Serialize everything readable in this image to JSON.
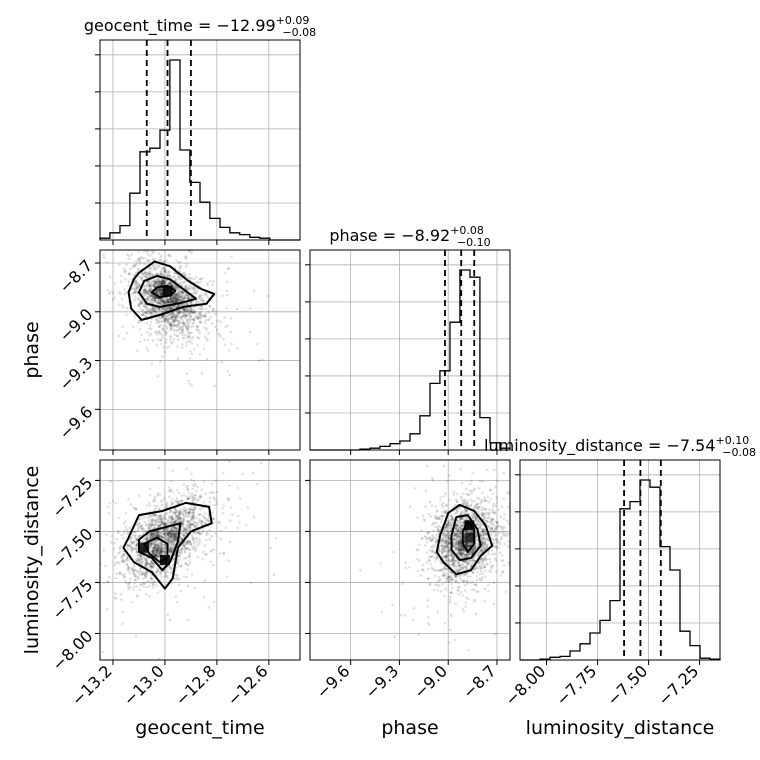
{
  "chart_data": {
    "type": "corner",
    "parameters": [
      "geocent_time",
      "phase",
      "luminosity_distance"
    ],
    "axis_labels": {
      "geocent_time": "geocent_time",
      "phase": "phase",
      "luminosity_distance": "luminosity_distance"
    },
    "titles": [
      {
        "param": "geocent_time",
        "text": "geocent_time = −12.99",
        "sup": "+0.09",
        "sub": "−0.08"
      },
      {
        "param": "phase",
        "text": "phase = −8.92",
        "sup": "+0.08",
        "sub": "−0.10"
      },
      {
        "param": "luminosity_distance",
        "text": "luminosity_distance = −7.54",
        "sup": "+0.10",
        "sub": "−0.08"
      }
    ],
    "ranges": {
      "geocent_time": [
        -13.25,
        -12.48
      ],
      "phase": [
        -9.85,
        -8.62
      ],
      "luminosity_distance": [
        -8.13,
        -7.15
      ]
    },
    "ticks": {
      "geocent_time": [
        -13.2,
        -13.0,
        -12.8,
        -12.6
      ],
      "phase": [
        -9.6,
        -9.3,
        -9.0,
        -8.7
      ],
      "luminosity_distance": [
        -8.0,
        -7.75,
        -7.5,
        -7.25
      ]
    },
    "tick_labels": {
      "geocent_time": [
        "−13.2",
        "−13.0",
        "−12.8",
        "−12.6"
      ],
      "phase": [
        "−9.6",
        "−9.3",
        "−9.0",
        "−8.7"
      ],
      "luminosity_distance": [
        "−8.00",
        "−7.75",
        "−7.50",
        "−7.25"
      ]
    },
    "quantiles": {
      "geocent_time": [
        -13.07,
        -12.99,
        -12.9
      ],
      "phase": [
        -9.02,
        -8.92,
        -8.84
      ],
      "luminosity_distance": [
        -7.62,
        -7.54,
        -7.44
      ]
    },
    "histograms": {
      "geocent_time": {
        "edges": [
          -13.25,
          -13.212,
          -13.173,
          -13.135,
          -13.096,
          -13.058,
          -13.019,
          -12.981,
          -12.942,
          -12.904,
          -12.865,
          -12.827,
          -12.788,
          -12.75,
          -12.712,
          -12.673,
          -12.635,
          -12.596,
          -12.558,
          -12.519,
          -12.48
        ],
        "counts": [
          0.01,
          0.04,
          0.08,
          0.26,
          0.49,
          0.51,
          0.61,
          1.0,
          0.5,
          0.32,
          0.21,
          0.12,
          0.07,
          0.04,
          0.03,
          0.015,
          0.01,
          0.0,
          0.0,
          0.0
        ]
      },
      "phase": {
        "edges": [
          -9.85,
          -9.789,
          -9.727,
          -9.666,
          -9.604,
          -9.543,
          -9.481,
          -9.42,
          -9.358,
          -9.297,
          -9.235,
          -9.174,
          -9.112,
          -9.051,
          -8.989,
          -8.928,
          -8.866,
          -8.805,
          -8.743,
          -8.682,
          -8.62
        ],
        "counts": [
          0.0,
          0.0,
          0.0,
          0.0,
          0.0,
          0.005,
          0.01,
          0.02,
          0.035,
          0.05,
          0.09,
          0.19,
          0.37,
          0.44,
          0.71,
          1.0,
          0.96,
          0.18,
          0.04,
          0.01
        ]
      },
      "luminosity_distance": {
        "edges": [
          -8.13,
          -8.081,
          -8.032,
          -7.983,
          -7.934,
          -7.885,
          -7.836,
          -7.787,
          -7.738,
          -7.689,
          -7.64,
          -7.591,
          -7.542,
          -7.493,
          -7.444,
          -7.395,
          -7.346,
          -7.297,
          -7.248,
          -7.199,
          -7.15
        ],
        "counts": [
          0.0,
          0.0,
          0.005,
          0.015,
          0.02,
          0.05,
          0.09,
          0.15,
          0.22,
          0.33,
          0.84,
          0.88,
          1.0,
          0.96,
          0.63,
          0.5,
          0.16,
          0.08,
          0.01,
          0.005
        ]
      }
    },
    "grid": true
  }
}
